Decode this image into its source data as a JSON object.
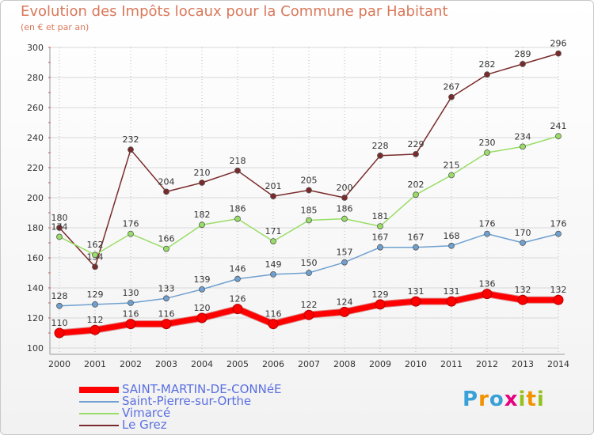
{
  "header": {
    "title": "Evolution des Impôts locaux pour la Commune par Habitant",
    "subtitle": "(en € et par an)"
  },
  "logo": {
    "letters": [
      "P",
      "r",
      "o",
      "x",
      "i",
      "t",
      "i"
    ],
    "colors": [
      "#3aa1d8",
      "#f39200",
      "#3aa1d8",
      "#e6007e",
      "#95c11f",
      "#f39200",
      "#95c11f"
    ]
  },
  "chart_data": {
    "type": "line",
    "title": "Evolution des Impôts locaux pour la Commune par Habitant",
    "subtitle": "(en € et par an)",
    "xlabel": "",
    "ylabel": "",
    "x": [
      "2000",
      "2001",
      "2002",
      "2003",
      "2004",
      "2005",
      "2006",
      "2007",
      "2008",
      "2009",
      "2010",
      "2011",
      "2012",
      "2013",
      "2014"
    ],
    "ylim": [
      100,
      300
    ],
    "yticks": [
      100,
      120,
      140,
      160,
      180,
      200,
      220,
      240,
      260,
      280,
      300
    ],
    "grid": "horizontal",
    "legend_position": "bottom",
    "series": [
      {
        "name": "SAINT-MARTIN-DE-CONNéE",
        "color": "#ff0000",
        "emphasis": true,
        "values": [
          110,
          112,
          116,
          116,
          120,
          126,
          116,
          122,
          124,
          129,
          131,
          131,
          136,
          132,
          132
        ]
      },
      {
        "name": "Saint-Pierre-sur-Orthe",
        "color": "#6fa0d0",
        "values": [
          128,
          129,
          130,
          133,
          139,
          146,
          149,
          150,
          157,
          167,
          167,
          168,
          176,
          170,
          176
        ]
      },
      {
        "name": "Vimarcé",
        "color": "#99dd66",
        "values": [
          174,
          162,
          176,
          166,
          182,
          186,
          171,
          185,
          186,
          181,
          202,
          215,
          230,
          234,
          241
        ]
      },
      {
        "name": "Le Grez",
        "color": "#7a2a2a",
        "values": [
          180,
          154,
          232,
          204,
          210,
          218,
          201,
          205,
          200,
          228,
          229,
          267,
          282,
          289,
          296
        ]
      }
    ]
  }
}
